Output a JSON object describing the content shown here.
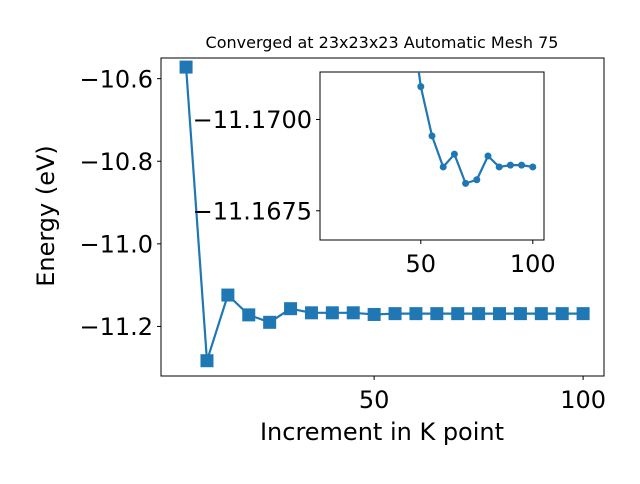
{
  "chart_data": [
    {
      "type": "line",
      "title": "Converged at 23x23x23 Automatic Mesh 75",
      "xlabel": "Increment in K point",
      "ylabel": "Energy (eV)",
      "xlim": [
        -1,
        105
      ],
      "ylim": [
        -11.32,
        -10.55
      ],
      "xticks": [
        50,
        100
      ],
      "yticks": [
        -10.6,
        -10.8,
        -11.0,
        -11.2
      ],
      "xtick_labels": [
        "50",
        "100"
      ],
      "ytick_labels": [
        "−10.6",
        "−10.8",
        "−11.0",
        "−11.2"
      ],
      "marker": "square",
      "color": "#1f77b4",
      "grid": false,
      "series": [
        {
          "x": [
            5,
            10,
            15,
            20,
            25,
            30,
            35,
            40,
            45,
            50,
            55,
            60,
            65,
            70,
            75,
            80,
            85,
            90,
            95,
            100
          ],
          "y": [
            -10.572,
            -11.283,
            -11.124,
            -11.172,
            -11.19,
            -11.157,
            -11.167,
            -11.167,
            -11.167,
            -11.171,
            -11.169,
            -11.169,
            -11.169,
            -11.169,
            -11.169,
            -11.169,
            -11.169,
            -11.169,
            -11.169,
            -11.169
          ]
        }
      ]
    },
    {
      "type": "line",
      "role": "inset",
      "xlim": [
        5,
        105
      ],
      "ylim": [
        -11.1667,
        -11.1713
      ],
      "xticks": [
        50,
        100
      ],
      "yticks": [
        -11.17,
        -11.1675
      ],
      "xtick_labels": [
        "50",
        "100"
      ],
      "ytick_labels": [
        "−11.1700",
        "−11.1675"
      ],
      "marker": "circle",
      "color": "#1f77b4",
      "grid": false,
      "series": [
        {
          "x": [
            48,
            50,
            55,
            60,
            65,
            70,
            75,
            80,
            85,
            90,
            95,
            100
          ],
          "y": [
            -11.1718,
            -11.1709,
            -11.16955,
            -11.1687,
            -11.16905,
            -11.16825,
            -11.16835,
            -11.169,
            -11.1687,
            -11.16875,
            -11.16875,
            -11.1687
          ]
        }
      ]
    }
  ]
}
